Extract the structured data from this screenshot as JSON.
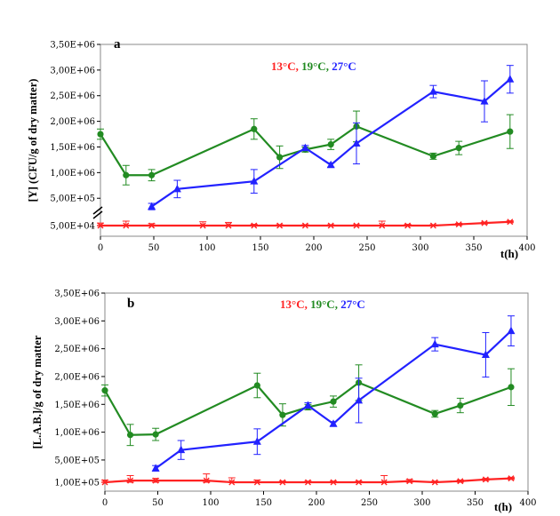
{
  "legend_sep": ", ",
  "chart_data": [
    {
      "type": "line",
      "panel_label": "a",
      "ylabel": "[Y] (CFU/g of dry matter)",
      "xlabel": "t(h)",
      "xlim": [
        0,
        400
      ],
      "xticks": [
        "0",
        "50",
        "100",
        "150",
        "200",
        "250",
        "300",
        "350",
        "400"
      ],
      "yticks": [
        "5,00E+04",
        "5,00E+05",
        "1,00E+06",
        "1,50E+06",
        "2,00E+06",
        "2,50E+06",
        "3,00E+06",
        "3,50E+06"
      ],
      "ylim": [
        50000,
        3500000
      ],
      "axis_break": true,
      "series": [
        {
          "name": "13°C",
          "color": "#ff2222",
          "marker": "star",
          "x": [
            0,
            24,
            48,
            96,
            120,
            144,
            168,
            192,
            216,
            240,
            264,
            288,
            312,
            336,
            360,
            384
          ],
          "y": [
            50000,
            50000,
            50000,
            50000,
            50000,
            50000,
            50000,
            50000,
            50000,
            50000,
            50000,
            50000,
            50000,
            70000,
            90000,
            110000
          ],
          "err": [
            40000,
            70000,
            30000,
            60000,
            50000,
            20000,
            15000,
            15000,
            15000,
            15000,
            70000,
            20000,
            15000,
            15000,
            15000,
            15000
          ]
        },
        {
          "name": "19°C",
          "color": "#228B22",
          "marker": "circle",
          "x": [
            0,
            24,
            48,
            144,
            168,
            192,
            216,
            240,
            312,
            336,
            384
          ],
          "y": [
            1750000,
            950000,
            950000,
            1850000,
            1300000,
            1450000,
            1550000,
            1900000,
            1320000,
            1480000,
            1800000
          ],
          "err": [
            100000,
            190000,
            110000,
            200000,
            220000,
            50000,
            100000,
            300000,
            60000,
            130000,
            330000
          ]
        },
        {
          "name": "27°C",
          "color": "#2222ff",
          "marker": "triangle",
          "x": [
            48,
            72,
            144,
            192,
            216,
            240,
            312,
            360,
            384
          ],
          "y": [
            350000,
            680000,
            830000,
            1480000,
            1150000,
            1570000,
            2580000,
            2390000,
            2820000
          ],
          "err": [
            50000,
            170000,
            230000,
            50000,
            40000,
            400000,
            120000,
            400000,
            270000
          ]
        }
      ]
    },
    {
      "type": "line",
      "panel_label": "b",
      "ylabel": "[L.A.B.]/g of dry matter",
      "xlabel": "t(h)",
      "xlim": [
        0,
        400
      ],
      "xticks": [
        "0",
        "50",
        "100",
        "150",
        "200",
        "250",
        "300",
        "350",
        "400"
      ],
      "yticks": [
        "1,00E+05",
        "5,00E+05",
        "1,00E+06",
        "1,50E+06",
        "2,00E+06",
        "2,50E+06",
        "3,00E+06",
        "3,50E+06"
      ],
      "ylim": [
        100000,
        3500000
      ],
      "axis_break": false,
      "series": [
        {
          "name": "13°C",
          "color": "#ff2222",
          "marker": "star",
          "x": [
            0,
            24,
            48,
            96,
            120,
            144,
            168,
            192,
            216,
            240,
            264,
            288,
            312,
            336,
            360,
            384
          ],
          "y": [
            100000,
            130000,
            130000,
            130000,
            100000,
            100000,
            100000,
            100000,
            100000,
            100000,
            100000,
            120000,
            100000,
            120000,
            150000,
            170000
          ],
          "err": [
            40000,
            90000,
            40000,
            120000,
            80000,
            40000,
            20000,
            20000,
            20000,
            20000,
            120000,
            30000,
            20000,
            20000,
            20000,
            20000
          ]
        },
        {
          "name": "19°C",
          "color": "#228B22",
          "marker": "circle",
          "x": [
            0,
            24,
            48,
            144,
            168,
            192,
            216,
            240,
            312,
            336,
            384
          ],
          "y": [
            1750000,
            950000,
            960000,
            1840000,
            1310000,
            1450000,
            1550000,
            1890000,
            1330000,
            1480000,
            1810000
          ],
          "err": [
            100000,
            190000,
            110000,
            220000,
            200000,
            50000,
            100000,
            320000,
            60000,
            130000,
            330000
          ]
        },
        {
          "name": "27°C",
          "color": "#2222ff",
          "marker": "triangle",
          "x": [
            48,
            72,
            144,
            192,
            216,
            240,
            312,
            360,
            384
          ],
          "y": [
            350000,
            680000,
            830000,
            1480000,
            1150000,
            1570000,
            2580000,
            2390000,
            2820000
          ],
          "err": [
            50000,
            170000,
            230000,
            50000,
            40000,
            400000,
            120000,
            400000,
            270000
          ]
        }
      ]
    }
  ]
}
